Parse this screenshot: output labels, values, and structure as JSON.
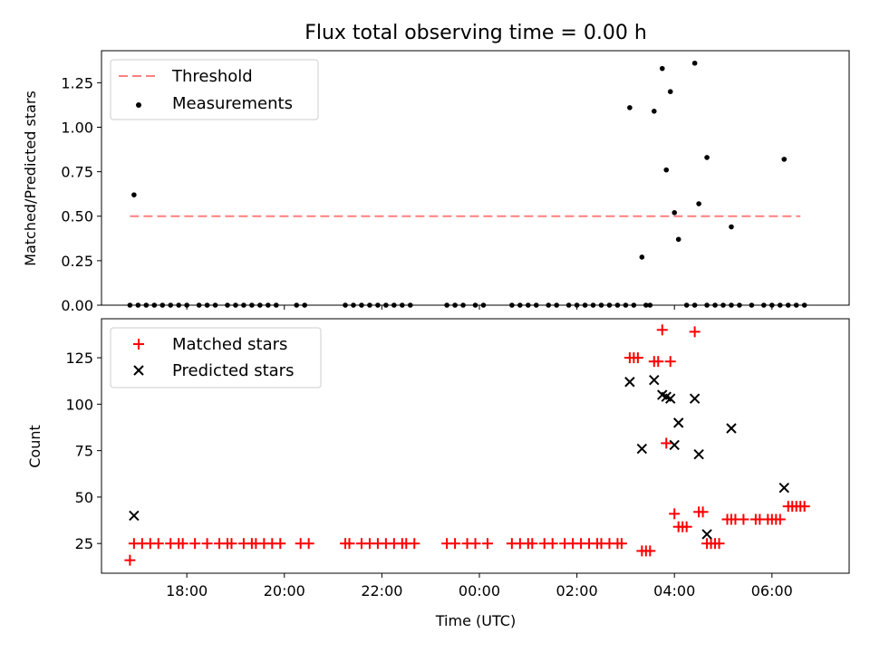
{
  "chart_data": [
    {
      "type": "scatter",
      "title": "Flux total observing time = 0.00 h",
      "xlabel": "",
      "ylabel": "Matched/Predicted stars",
      "ylim": [
        0,
        1.43
      ],
      "yticks": [
        "0.00",
        "0.25",
        "0.50",
        "0.75",
        "1.00",
        "1.25"
      ],
      "ytick_values": [
        0,
        0.25,
        0.5,
        0.75,
        1.0,
        1.25
      ],
      "legend": {
        "placement": "upper-left",
        "entries": [
          "Threshold",
          "Measurements"
        ]
      },
      "threshold": {
        "name": "Threshold",
        "value": 0.5,
        "x_range": [
          "16:50",
          "06:35"
        ],
        "color": "#ff7f7f",
        "style": "dashed"
      },
      "series": [
        {
          "name": "Measurements",
          "color": "#000000",
          "marker": "dot",
          "points": [
            [
              "16:55",
              0.62
            ],
            [
              "03:05",
              1.11
            ],
            [
              "03:20",
              0.27
            ],
            [
              "03:35",
              1.09
            ],
            [
              "03:45",
              1.33
            ],
            [
              "03:50",
              0.76
            ],
            [
              "03:55",
              1.2
            ],
            [
              "04:00",
              0.52
            ],
            [
              "04:05",
              0.37
            ],
            [
              "04:25",
              1.36
            ],
            [
              "04:30",
              0.57
            ],
            [
              "04:40",
              0.83
            ],
            [
              "05:10",
              0.44
            ],
            [
              "06:15",
              0.82
            ]
          ],
          "zero_points": [
            "16:50",
            "17:00",
            "17:10",
            "17:20",
            "17:30",
            "17:40",
            "17:50",
            "18:00",
            "18:15",
            "18:25",
            "18:35",
            "18:50",
            "19:00",
            "19:10",
            "19:20",
            "19:30",
            "19:40",
            "19:50",
            "20:15",
            "20:25",
            "21:15",
            "21:25",
            "21:35",
            "21:45",
            "21:55",
            "22:05",
            "22:15",
            "22:25",
            "22:35",
            "23:20",
            "23:30",
            "23:40",
            "23:55",
            "00:05",
            "00:40",
            "00:50",
            "01:00",
            "01:10",
            "01:25",
            "01:35",
            "01:50",
            "02:00",
            "02:10",
            "02:20",
            "02:30",
            "02:40",
            "02:50",
            "03:00",
            "03:10",
            "03:25",
            "03:30",
            "04:15",
            "04:25",
            "04:40",
            "04:50",
            "05:00",
            "05:10",
            "05:20",
            "05:35",
            "05:50",
            "06:00",
            "06:10",
            "06:20",
            "06:30",
            "06:40"
          ]
        }
      ]
    },
    {
      "type": "scatter",
      "title": "",
      "xlabel": "Time (UTC)",
      "ylabel": "Count",
      "ylim": [
        9,
        146
      ],
      "yticks": [
        "25",
        "50",
        "75",
        "100",
        "125"
      ],
      "ytick_values": [
        25,
        50,
        75,
        100,
        125
      ],
      "xticks": [
        "18:00",
        "20:00",
        "22:00",
        "00:00",
        "02:00",
        "04:00",
        "06:00"
      ],
      "xlim": [
        "16:15",
        "07:35"
      ],
      "legend": {
        "placement": "upper-left",
        "entries": [
          "Matched stars",
          "Predicted stars"
        ]
      },
      "series": [
        {
          "name": "Matched stars",
          "color": "#ff0000",
          "marker": "plus",
          "points": [
            [
              "16:50",
              16
            ],
            [
              "16:55",
              25
            ],
            [
              "17:05",
              25
            ],
            [
              "17:15",
              25
            ],
            [
              "17:25",
              25
            ],
            [
              "17:40",
              25
            ],
            [
              "17:50",
              25
            ],
            [
              "17:55",
              25
            ],
            [
              "18:10",
              25
            ],
            [
              "18:25",
              25
            ],
            [
              "18:40",
              25
            ],
            [
              "18:50",
              25
            ],
            [
              "18:55",
              25
            ],
            [
              "19:10",
              25
            ],
            [
              "19:20",
              25
            ],
            [
              "19:25",
              25
            ],
            [
              "19:35",
              25
            ],
            [
              "19:45",
              25
            ],
            [
              "19:55",
              25
            ],
            [
              "20:20",
              25
            ],
            [
              "20:30",
              25
            ],
            [
              "21:15",
              25
            ],
            [
              "21:20",
              25
            ],
            [
              "21:35",
              25
            ],
            [
              "21:45",
              25
            ],
            [
              "21:55",
              25
            ],
            [
              "22:05",
              25
            ],
            [
              "22:15",
              25
            ],
            [
              "22:25",
              25
            ],
            [
              "22:30",
              25
            ],
            [
              "22:40",
              25
            ],
            [
              "23:20",
              25
            ],
            [
              "23:30",
              25
            ],
            [
              "23:45",
              25
            ],
            [
              "23:55",
              25
            ],
            [
              "00:10",
              25
            ],
            [
              "00:40",
              25
            ],
            [
              "00:50",
              25
            ],
            [
              "01:00",
              25
            ],
            [
              "01:05",
              25
            ],
            [
              "01:20",
              25
            ],
            [
              "01:30",
              25
            ],
            [
              "01:45",
              25
            ],
            [
              "01:55",
              25
            ],
            [
              "02:05",
              25
            ],
            [
              "02:15",
              25
            ],
            [
              "02:25",
              25
            ],
            [
              "02:30",
              25
            ],
            [
              "02:40",
              25
            ],
            [
              "02:50",
              25
            ],
            [
              "02:55",
              25
            ],
            [
              "03:05",
              125
            ],
            [
              "03:10",
              125
            ],
            [
              "03:15",
              125
            ],
            [
              "03:20",
              21
            ],
            [
              "03:25",
              21
            ],
            [
              "03:30",
              21
            ],
            [
              "03:35",
              123
            ],
            [
              "03:40",
              123
            ],
            [
              "03:45",
              140
            ],
            [
              "03:50",
              79
            ],
            [
              "03:55",
              123
            ],
            [
              "04:00",
              41
            ],
            [
              "04:05",
              34
            ],
            [
              "04:10",
              34
            ],
            [
              "04:15",
              34
            ],
            [
              "04:25",
              139
            ],
            [
              "04:30",
              42
            ],
            [
              "04:35",
              42
            ],
            [
              "04:40",
              25
            ],
            [
              "04:45",
              25
            ],
            [
              "04:50",
              25
            ],
            [
              "04:55",
              25
            ],
            [
              "05:05",
              38
            ],
            [
              "05:10",
              38
            ],
            [
              "05:15",
              38
            ],
            [
              "05:25",
              38
            ],
            [
              "05:40",
              38
            ],
            [
              "05:45",
              38
            ],
            [
              "05:55",
              38
            ],
            [
              "06:00",
              38
            ],
            [
              "06:05",
              38
            ],
            [
              "06:10",
              38
            ],
            [
              "06:20",
              45
            ],
            [
              "06:25",
              45
            ],
            [
              "06:30",
              45
            ],
            [
              "06:35",
              45
            ],
            [
              "06:40",
              45
            ]
          ]
        },
        {
          "name": "Predicted stars",
          "color": "#000000",
          "marker": "x",
          "points": [
            [
              "16:55",
              40
            ],
            [
              "03:05",
              112
            ],
            [
              "03:20",
              76
            ],
            [
              "03:35",
              113
            ],
            [
              "03:45",
              105
            ],
            [
              "03:50",
              104
            ],
            [
              "03:55",
              103
            ],
            [
              "04:00",
              78
            ],
            [
              "04:05",
              90
            ],
            [
              "04:25",
              103
            ],
            [
              "04:30",
              73
            ],
            [
              "04:40",
              30
            ],
            [
              "05:10",
              87
            ],
            [
              "06:15",
              55
            ]
          ]
        }
      ]
    }
  ]
}
